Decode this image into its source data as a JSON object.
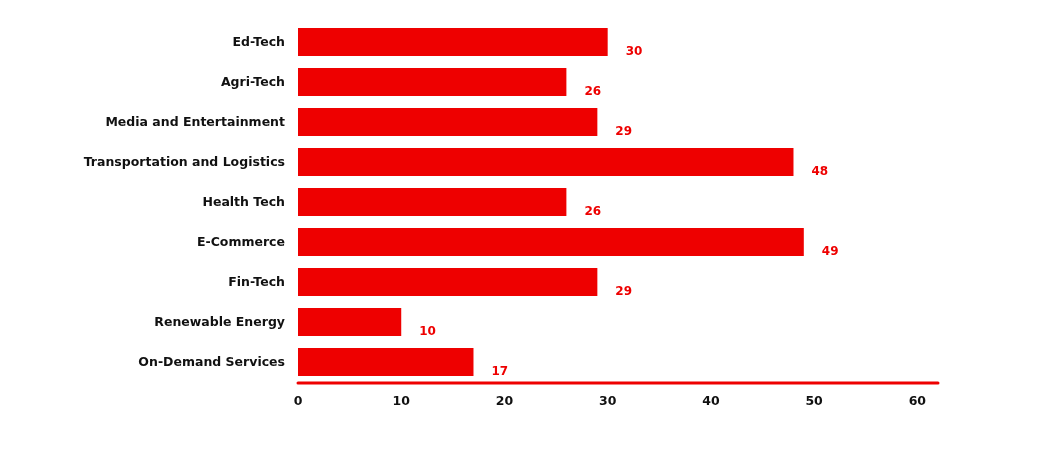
{
  "chart_data": {
    "type": "bar",
    "orientation": "horizontal",
    "categories": [
      "Ed-Tech",
      "Agri-Tech",
      "Media and Entertainment",
      "Transportation and Logistics",
      "Health Tech",
      "E-Commerce",
      "Fin-Tech",
      "Renewable Energy",
      "On-Demand Services"
    ],
    "values": [
      30,
      26,
      29,
      48,
      26,
      49,
      29,
      10,
      17
    ],
    "color": "#ee0000",
    "xlim": [
      0,
      62
    ],
    "xticks": [
      0,
      10,
      20,
      30,
      40,
      50,
      60
    ],
    "data_labels": true
  }
}
